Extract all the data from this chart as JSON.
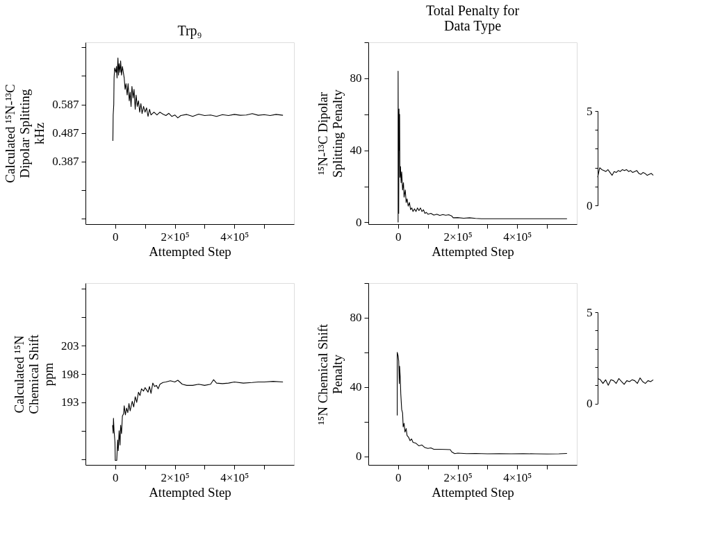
{
  "chart_data": [
    {
      "type": "line",
      "title": "Trp₉",
      "xlabel": "Attempted Step",
      "ylabel": "Calculated ¹⁵N-¹³C\nDipolar Splitting\nkHz",
      "color": "#000000",
      "xlim": [
        -100000,
        600000
      ],
      "xticks": [
        {
          "value": 0,
          "label": "0"
        },
        {
          "value": 100000,
          "label": null
        },
        {
          "value": 200000,
          "label": "2×10⁵"
        },
        {
          "value": 300000,
          "label": null
        },
        {
          "value": 400000,
          "label": "4×10⁵"
        },
        {
          "value": 500000,
          "label": null
        }
      ],
      "ylim": [
        0.167,
        0.805
      ],
      "yticks": [
        {
          "value": 0.187,
          "label": null
        },
        {
          "value": 0.287,
          "label": null
        },
        0.387,
        0.487,
        0.587,
        {
          "value": 0.687,
          "label": null
        },
        {
          "value": 0.787,
          "label": null
        }
      ],
      "x": [
        -8000,
        -7000,
        -5000,
        -4000,
        -2000,
        2000,
        4000,
        6000,
        9000,
        11000,
        13000,
        16000,
        18000,
        21000,
        24000,
        27000,
        30000,
        33000,
        36000,
        40000,
        43000,
        47000,
        50000,
        53000,
        56000,
        60000,
        63000,
        67000,
        70000,
        74000,
        78000,
        82000,
        86000,
        90000,
        95000,
        100000,
        105000,
        110000,
        115000,
        120000,
        130000,
        140000,
        150000,
        160000,
        170000,
        180000,
        190000,
        200000,
        210000,
        220000,
        240000,
        260000,
        280000,
        300000,
        320000,
        340000,
        360000,
        380000,
        400000,
        420000,
        440000,
        460000,
        480000,
        500000,
        520000,
        540000,
        563000
      ],
      "values": [
        0.459,
        0.55,
        0.587,
        0.68,
        0.715,
        0.7,
        0.72,
        0.68,
        0.75,
        0.69,
        0.73,
        0.7,
        0.74,
        0.69,
        0.72,
        0.7,
        0.68,
        0.64,
        0.66,
        0.62,
        0.66,
        0.6,
        0.63,
        0.58,
        0.65,
        0.61,
        0.64,
        0.57,
        0.62,
        0.58,
        0.6,
        0.56,
        0.59,
        0.555,
        0.58,
        0.56,
        0.575,
        0.545,
        0.57,
        0.55,
        0.56,
        0.55,
        0.56,
        0.553,
        0.548,
        0.556,
        0.545,
        0.55,
        0.54,
        0.548,
        0.552,
        0.545,
        0.553,
        0.548,
        0.55,
        0.545,
        0.551,
        0.548,
        0.552,
        0.549,
        0.55,
        0.555,
        0.549,
        0.551,
        0.548,
        0.552,
        0.549
      ]
    },
    {
      "type": "line",
      "title": "Total Penalty for\nData Type",
      "xlabel": "Attempted Step",
      "ylabel": "¹⁵N-¹³C Dipolar\nSplitting Penalty",
      "color": "#000000",
      "xlim": [
        -100000,
        600000
      ],
      "xticks": [
        {
          "value": 0,
          "label": "0"
        },
        {
          "value": 100000,
          "label": null
        },
        {
          "value": 200000,
          "label": "2×10⁵"
        },
        {
          "value": 300000,
          "label": null
        },
        {
          "value": 400000,
          "label": "4×10⁵"
        },
        {
          "value": 500000,
          "label": null
        }
      ],
      "ylim": [
        -1,
        100
      ],
      "yticks": [
        0,
        {
          "value": 20,
          "label": null
        },
        40,
        {
          "value": 60,
          "label": null
        },
        80,
        {
          "value": 100,
          "label": null
        }
      ],
      "x": [
        0,
        0,
        1000,
        2000,
        3000,
        4000,
        5000,
        6000,
        8000,
        10000,
        12000,
        15000,
        18000,
        20000,
        24000,
        27000,
        30000,
        34000,
        38000,
        42000,
        46000,
        50000,
        55000,
        60000,
        65000,
        70000,
        75000,
        80000,
        85000,
        90000,
        95000,
        100000,
        110000,
        120000,
        130000,
        140000,
        150000,
        160000,
        170000,
        180000,
        185000,
        200000,
        220000,
        240000,
        260000,
        280000,
        300000,
        400000,
        567000
      ],
      "values": [
        0,
        84,
        20,
        5,
        63,
        40,
        60,
        25,
        31,
        22,
        28,
        18,
        22,
        14,
        18,
        11,
        13,
        9,
        11,
        7,
        8,
        6,
        7.5,
        6,
        8,
        6.5,
        8,
        6,
        7,
        5,
        5.5,
        4.5,
        5,
        4,
        4.5,
        3.8,
        4.3,
        3.9,
        4.2,
        3.5,
        2.5,
        2.6,
        2.3,
        2.5,
        2.2,
        2.0,
        2.0,
        2.0,
        2.0
      ]
    },
    {
      "type": "line",
      "color": "#000000",
      "tick_labels": "y",
      "ylim": [
        0,
        5
      ],
      "yticks": [
        0,
        {
          "value": 1,
          "label": null
        },
        {
          "value": 2,
          "label": null
        },
        {
          "value": 3,
          "label": null
        },
        {
          "value": 4,
          "label": null
        },
        5
      ],
      "categories": [
        null,
        null,
        null,
        null,
        null,
        null,
        null,
        null,
        null,
        null,
        null,
        null,
        null,
        null,
        null,
        null,
        null,
        null,
        null,
        null,
        null,
        null,
        null,
        null,
        null,
        null,
        null,
        null
      ],
      "values": [
        1.5,
        2.0,
        1.9,
        1.85,
        1.8,
        1.9,
        1.75,
        1.6,
        1.8,
        1.75,
        1.85,
        1.8,
        1.9,
        1.85,
        1.9,
        1.8,
        1.85,
        1.75,
        1.8,
        1.85,
        1.7,
        1.65,
        1.75,
        1.7,
        1.6,
        1.65,
        1.7,
        1.6
      ]
    },
    {
      "type": "line",
      "xlabel": "Attempted Step",
      "ylabel": "Calculated ¹⁵N\nChemical Shift\nppm",
      "color": "#000000",
      "xlim": [
        -100000,
        600000
      ],
      "xticks": [
        {
          "value": 0,
          "label": "0"
        },
        {
          "value": 100000,
          "label": null
        },
        {
          "value": 200000,
          "label": "2×10⁵"
        },
        {
          "value": 300000,
          "label": null
        },
        {
          "value": 400000,
          "label": "4×10⁵"
        },
        {
          "value": 500000,
          "label": null
        }
      ],
      "ylim": [
        182,
        214
      ],
      "yticks": [
        {
          "value": 183,
          "label": null
        },
        {
          "value": 188,
          "label": null
        },
        193,
        198,
        203,
        {
          "value": 208,
          "label": null
        },
        {
          "value": 213,
          "label": null
        }
      ],
      "x": [
        -9000,
        -7000,
        -6000,
        -4000,
        -1000,
        0,
        5000,
        8000,
        10000,
        13000,
        16000,
        18000,
        21000,
        24000,
        28000,
        30000,
        34000,
        38000,
        42000,
        46000,
        50000,
        57000,
        62000,
        67000,
        72000,
        78000,
        83000,
        88000,
        95000,
        100000,
        105000,
        110000,
        115000,
        120000,
        126000,
        132000,
        138000,
        144000,
        150000,
        160000,
        170000,
        185000,
        200000,
        210000,
        225000,
        240000,
        260000,
        280000,
        300000,
        320000,
        330000,
        340000,
        360000,
        380000,
        400000,
        430000,
        460000,
        480000,
        500000,
        530000,
        563000
      ],
      "values": [
        189.0,
        187.6,
        190.2,
        188.0,
        186.0,
        182.8,
        182.8,
        186.4,
        184.5,
        188.0,
        185.5,
        189.0,
        187.5,
        190.6,
        191.0,
        192.4,
        190.8,
        192.0,
        191.2,
        192.8,
        191.5,
        193.2,
        192.2,
        194.0,
        193.0,
        194.8,
        194.2,
        195.4,
        195.0,
        195.6,
        195.2,
        194.8,
        195.8,
        194.6,
        196.4,
        195.8,
        196.0,
        195.4,
        196.2,
        196.5,
        196.6,
        196.8,
        196.6,
        196.9,
        196.2,
        196.0,
        196.0,
        196.2,
        196.0,
        196.2,
        197.0,
        196.4,
        196.3,
        196.4,
        196.6,
        196.4,
        196.5,
        196.6,
        196.6,
        196.7,
        196.6
      ]
    },
    {
      "type": "line",
      "xlabel": "Attempted Step",
      "ylabel": "¹⁵N Chemical Shift\nPenalty",
      "color": "#000000",
      "xlim": [
        -100000,
        600000
      ],
      "xticks": [
        {
          "value": 0,
          "label": "0"
        },
        {
          "value": 100000,
          "label": null
        },
        {
          "value": 200000,
          "label": "2×10⁵"
        },
        {
          "value": 300000,
          "label": null
        },
        {
          "value": 400000,
          "label": "4×10⁵"
        },
        {
          "value": 500000,
          "label": null
        }
      ],
      "ylim": [
        -5,
        100
      ],
      "yticks": [
        0,
        {
          "value": 20,
          "label": null
        },
        40,
        {
          "value": 60,
          "label": null
        },
        80,
        {
          "value": 100,
          "label": null
        }
      ],
      "x": [
        -3000,
        -3000,
        0,
        2000,
        4000,
        5000,
        7000,
        9000,
        12000,
        15000,
        17000,
        20000,
        23000,
        27000,
        30000,
        35000,
        40000,
        45000,
        50000,
        60000,
        70000,
        80000,
        90000,
        100000,
        110000,
        120000,
        140000,
        160000,
        175000,
        180000,
        190000,
        200000,
        230000,
        260000,
        300000,
        340000,
        380000,
        420000,
        460000,
        500000,
        540000,
        567000
      ],
      "values": [
        23.6,
        60,
        58,
        55,
        42,
        52,
        46,
        36,
        27,
        25,
        17,
        19,
        14,
        16,
        12,
        11,
        9,
        10,
        8,
        7.5,
        6,
        6.5,
        5,
        4.5,
        4.8,
        4,
        4,
        3.9,
        3.8,
        2.5,
        1.5,
        1.8,
        1.5,
        1.6,
        1.4,
        1.5,
        1.4,
        1.5,
        1.4,
        1.3,
        1.4,
        1.6
      ]
    },
    {
      "type": "line",
      "color": "#000000",
      "tick_labels": "y",
      "ylim": [
        0,
        5
      ],
      "yticks": [
        0,
        {
          "value": 1,
          "label": null
        },
        {
          "value": 2,
          "label": null
        },
        {
          "value": 3,
          "label": null
        },
        {
          "value": 4,
          "label": null
        },
        5
      ],
      "categories": [
        null,
        null,
        null,
        null,
        null,
        null,
        null,
        null,
        null,
        null,
        null,
        null,
        null,
        null,
        null,
        null,
        null,
        null,
        null,
        null,
        null,
        null
      ],
      "values": [
        1.37,
        1.3,
        1.1,
        1.3,
        1.0,
        1.3,
        1.25,
        1.1,
        1.37,
        1.2,
        1.05,
        1.25,
        1.2,
        1.3,
        1.25,
        1.1,
        1.4,
        1.2,
        1.1,
        1.25,
        1.2,
        1.3
      ]
    }
  ]
}
